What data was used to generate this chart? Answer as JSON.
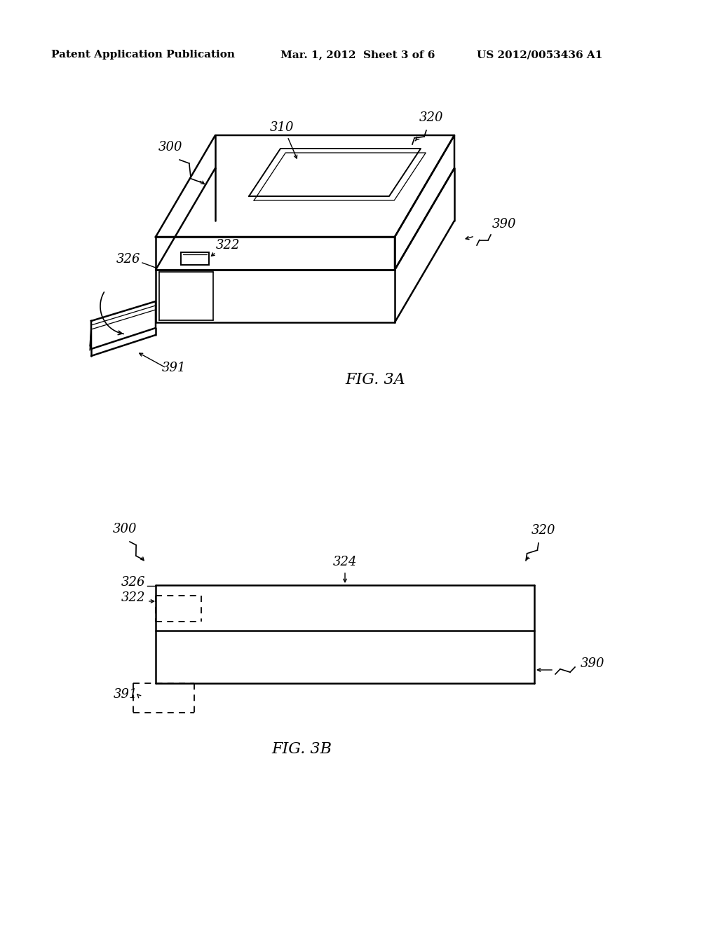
{
  "bg_color": "#ffffff",
  "text_color": "#000000",
  "line_color": "#000000",
  "header_left": "Patent Application Publication",
  "header_center": "Mar. 1, 2012  Sheet 3 of 6",
  "header_right": "US 2012/0053436 A1",
  "fig3a_label": "FIG. 3A",
  "fig3b_label": "FIG. 3B",
  "label_fs": 13,
  "header_fs": 11,
  "fig_label_fs": 16
}
